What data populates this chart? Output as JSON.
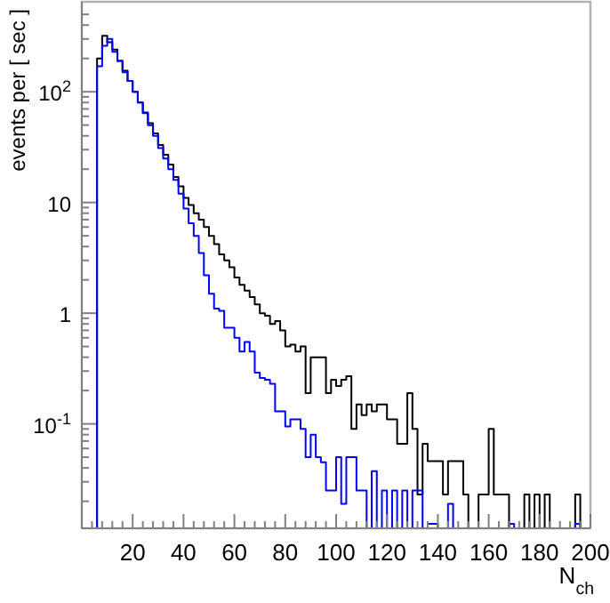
{
  "chart_data": {
    "type": "histogram",
    "xlabel": "N$_{ch}$",
    "ylabel": "events per [ sec ]",
    "log": "y",
    "bins": [
      6,
      8,
      10,
      12,
      14,
      16,
      18,
      20,
      22,
      24,
      26,
      28,
      30,
      32,
      34,
      36,
      38,
      40,
      42,
      44,
      46,
      48,
      50,
      52,
      54,
      56,
      58,
      60,
      62,
      64,
      66,
      68,
      70,
      72,
      74,
      76,
      78,
      80,
      82,
      84,
      86,
      88,
      90,
      92,
      94,
      96,
      98,
      100,
      102,
      104,
      106,
      108,
      110,
      112,
      114,
      116,
      118,
      120,
      122,
      124,
      126,
      128,
      130,
      132,
      134,
      136,
      138,
      140,
      142,
      144,
      146,
      148,
      150,
      152,
      154,
      156,
      158,
      160,
      162,
      164,
      166,
      168,
      170,
      172,
      174,
      176,
      178,
      180,
      182,
      184,
      186,
      188,
      190,
      192,
      194,
      196,
      198,
      200
    ],
    "series": [
      {
        "color": "#000000",
        "values": [
          200,
          320,
          280,
          240,
          190,
          155,
          125,
          100,
          80,
          65,
          52,
          42,
          33,
          27,
          22,
          17,
          14,
          11,
          9.5,
          8,
          7,
          6,
          5,
          4.2,
          3.4,
          3,
          2.6,
          2.1,
          1.8,
          1.6,
          1.4,
          1.2,
          1,
          0.95,
          0.8,
          0.85,
          0.7,
          0.5,
          0.52,
          0.45,
          0.5,
          0.19,
          0.4,
          0.4,
          0.4,
          0.19,
          0.25,
          0.22,
          0.25,
          0.27,
          0.09,
          0.15,
          0.12,
          0.15,
          0.13,
          0.15,
          0.15,
          0.11,
          0.11,
          0.066,
          0.066,
          0.19,
          0.09,
          0.023,
          0.066,
          0.046,
          0.046,
          0.046,
          0.023,
          0.046,
          0.046,
          0.046,
          0.023,
          null,
          null,
          0.023,
          0.023,
          0.09,
          0.023,
          0.023,
          0.023,
          null,
          null,
          null,
          0.023,
          null,
          0.023,
          null,
          0.023,
          null,
          null,
          null,
          null,
          null,
          0.023,
          null,
          null
        ]
      },
      {
        "color": "#0000ff",
        "values": [
          170,
          260,
          300,
          230,
          190,
          150,
          125,
          100,
          80,
          64,
          50,
          40,
          31,
          25,
          20,
          16,
          12,
          8.8,
          6.5,
          5,
          3.5,
          2.2,
          1.5,
          1.1,
          1.05,
          0.74,
          0.74,
          0.6,
          0.45,
          0.55,
          0.45,
          0.29,
          0.26,
          0.25,
          0.23,
          0.13,
          0.13,
          0.095,
          0.11,
          0.11,
          0.09,
          0.05,
          0.08,
          0.05,
          0.045,
          0.025,
          0.025,
          0.05,
          0.019,
          0.05,
          0.05,
          0.025,
          0.025,
          null,
          0.0375,
          null,
          0.025,
          null,
          0.025,
          null,
          0.025,
          null,
          0.025,
          0.025,
          null,
          0.0125,
          0.0125,
          null,
          null,
          0.019,
          null,
          null,
          null,
          null,
          null,
          null,
          null,
          null,
          null,
          null,
          null,
          0.0125,
          null,
          null,
          null,
          null,
          null,
          null,
          null,
          null,
          null,
          null,
          null,
          null,
          0.0125,
          null,
          null
        ]
      }
    ],
    "xlim": [
      0,
      200
    ],
    "xticks": [
      {
        "value": 4,
        "label": null
      },
      {
        "value": 8,
        "label": null
      },
      {
        "value": 12,
        "label": null
      },
      {
        "value": 16,
        "label": null
      },
      20,
      {
        "value": 24,
        "label": null
      },
      {
        "value": 28,
        "label": null
      },
      {
        "value": 32,
        "label": null
      },
      {
        "value": 36,
        "label": null
      },
      40,
      {
        "value": 44,
        "label": null
      },
      {
        "value": 48,
        "label": null
      },
      {
        "value": 52,
        "label": null
      },
      {
        "value": 56,
        "label": null
      },
      60,
      {
        "value": 64,
        "label": null
      },
      {
        "value": 68,
        "label": null
      },
      {
        "value": 72,
        "label": null
      },
      {
        "value": 76,
        "label": null
      },
      80,
      {
        "value": 84,
        "label": null
      },
      {
        "value": 88,
        "label": null
      },
      {
        "value": 92,
        "label": null
      },
      {
        "value": 96,
        "label": null
      },
      100,
      {
        "value": 104,
        "label": null
      },
      {
        "value": 108,
        "label": null
      },
      {
        "value": 112,
        "label": null
      },
      {
        "value": 116,
        "label": null
      },
      120,
      {
        "value": 124,
        "label": null
      },
      {
        "value": 128,
        "label": null
      },
      {
        "value": 132,
        "label": null
      },
      {
        "value": 136,
        "label": null
      },
      140,
      {
        "value": 144,
        "label": null
      },
      {
        "value": 148,
        "label": null
      },
      {
        "value": 152,
        "label": null
      },
      {
        "value": 156,
        "label": null
      },
      160,
      {
        "value": 164,
        "label": null
      },
      {
        "value": 168,
        "label": null
      },
      {
        "value": 172,
        "label": null
      },
      {
        "value": 176,
        "label": null
      },
      180,
      {
        "value": 184,
        "label": null
      },
      {
        "value": 188,
        "label": null
      },
      {
        "value": 192,
        "label": null
      },
      {
        "value": 196,
        "label": null
      },
      200
    ],
    "ylim": [
      0.0114,
      650
    ],
    "yticks": [
      {
        "value": 0.02,
        "label": null
      },
      {
        "value": 0.03,
        "label": null
      },
      {
        "value": 0.04,
        "label": null
      },
      {
        "value": 0.05,
        "label": null
      },
      {
        "value": 0.06,
        "label": null
      },
      {
        "value": 0.07,
        "label": null
      },
      {
        "value": 0.08,
        "label": null
      },
      {
        "value": 0.09,
        "label": null
      },
      {
        "value": 0.1,
        "label": "10$^{-1}$"
      },
      {
        "value": 0.2,
        "label": null
      },
      {
        "value": 0.3,
        "label": null
      },
      {
        "value": 0.4,
        "label": null
      },
      {
        "value": 0.5,
        "label": null
      },
      {
        "value": 0.6,
        "label": null
      },
      {
        "value": 0.7,
        "label": null
      },
      {
        "value": 0.8,
        "label": null
      },
      {
        "value": 0.9,
        "label": null
      },
      1,
      {
        "value": 2,
        "label": null
      },
      {
        "value": 3,
        "label": null
      },
      {
        "value": 4,
        "label": null
      },
      {
        "value": 5,
        "label": null
      },
      {
        "value": 6,
        "label": null
      },
      {
        "value": 7,
        "label": null
      },
      {
        "value": 8,
        "label": null
      },
      {
        "value": 9,
        "label": null
      },
      10,
      {
        "value": 20,
        "label": null
      },
      {
        "value": 30,
        "label": null
      },
      {
        "value": 40,
        "label": null
      },
      {
        "value": 50,
        "label": null
      },
      {
        "value": 60,
        "label": null
      },
      {
        "value": 70,
        "label": null
      },
      {
        "value": 80,
        "label": null
      },
      {
        "value": 90,
        "label": null
      },
      {
        "value": 100,
        "label": "10$^{2}$"
      },
      {
        "value": 200,
        "label": null
      },
      {
        "value": 300,
        "label": null
      },
      {
        "value": 400,
        "label": null
      },
      {
        "value": 500,
        "label": null
      }
    ]
  }
}
